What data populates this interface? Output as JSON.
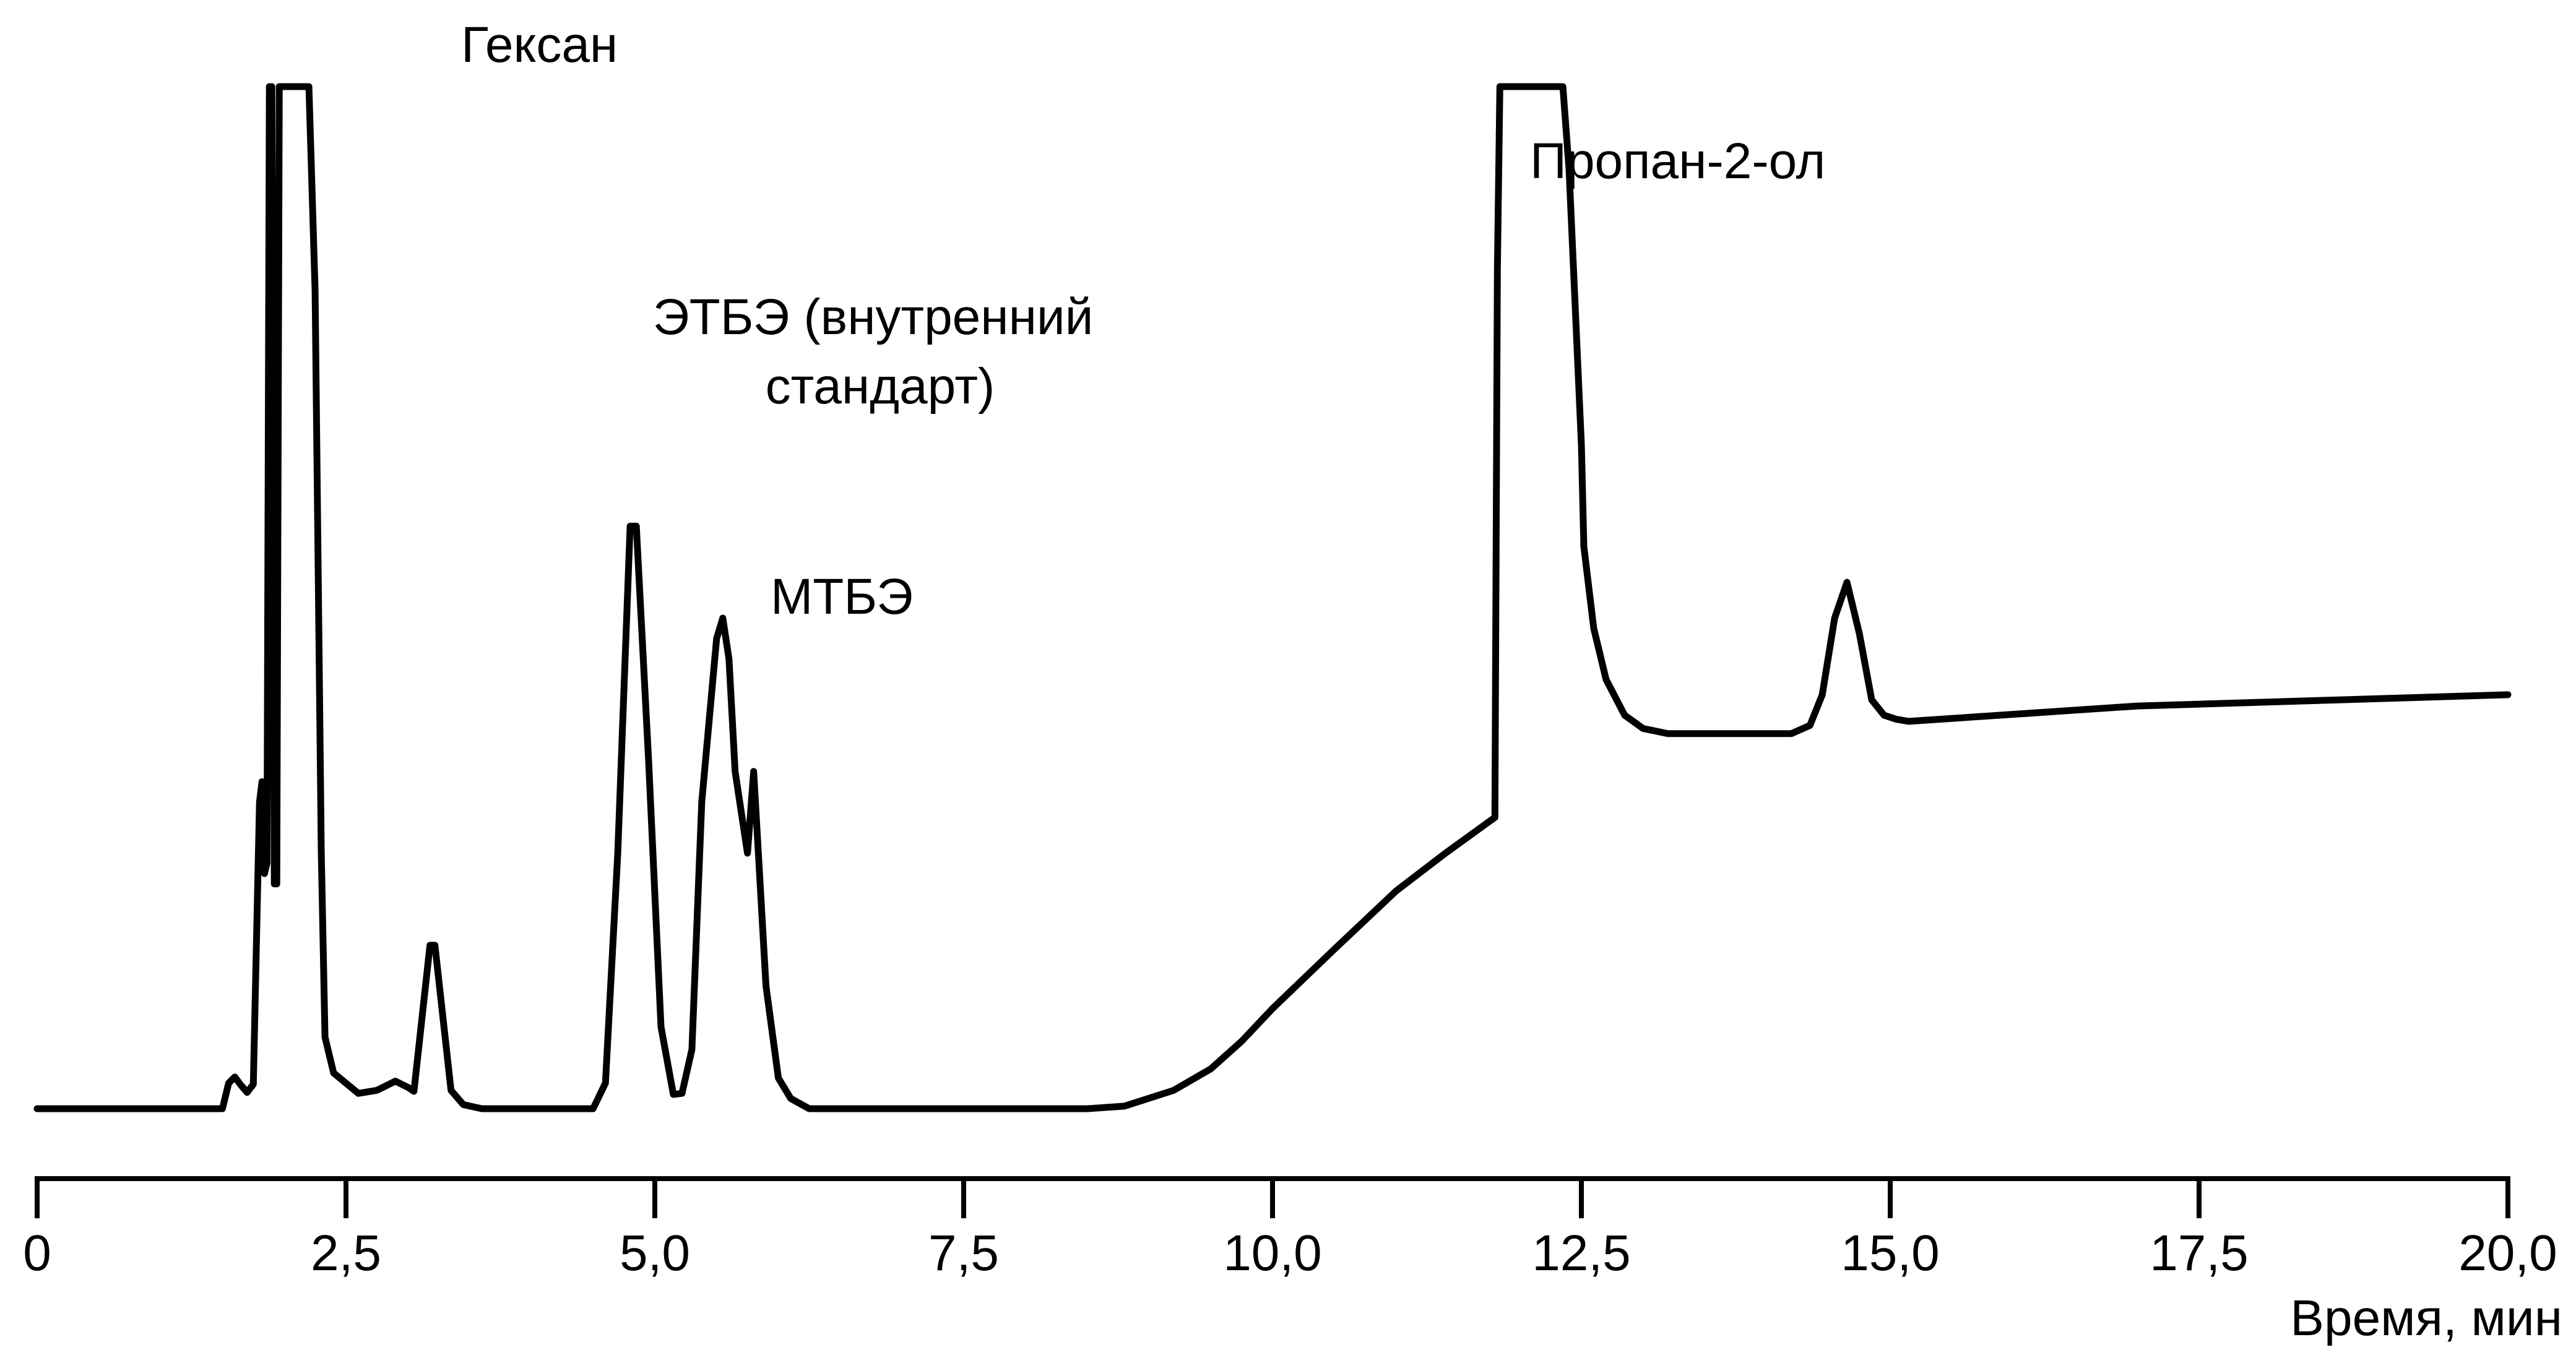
{
  "chart_data": {
    "type": "line",
    "title": "",
    "xlabel": "Время, мин",
    "ylabel": "",
    "xlim": [
      0,
      20
    ],
    "ylim": [
      0,
      100
    ],
    "grid": false,
    "legend": "none",
    "line_color": "#000000",
    "x_ticks": [
      {
        "value": 0,
        "label": "0"
      },
      {
        "value": 2.5,
        "label": "2,5"
      },
      {
        "value": 5,
        "label": "5,0"
      },
      {
        "value": 7.5,
        "label": "7,5"
      },
      {
        "value": 10,
        "label": "10,0"
      },
      {
        "value": 12.5,
        "label": "12,5"
      },
      {
        "value": 15,
        "label": "15,0"
      },
      {
        "value": 17.5,
        "label": "17,5"
      },
      {
        "value": 20,
        "label": "20,0"
      }
    ],
    "series": [
      {
        "points": [
          [
            0,
            0
          ],
          [
            1.5,
            0
          ],
          [
            1.55,
            2.5
          ],
          [
            1.6,
            3.1
          ],
          [
            1.65,
            2.3
          ],
          [
            1.7,
            1.6
          ],
          [
            1.75,
            2.4
          ],
          [
            1.8,
            30
          ],
          [
            1.82,
            32
          ],
          [
            1.84,
            23
          ],
          [
            1.86,
            24
          ],
          [
            1.88,
            100
          ],
          [
            1.9,
            100
          ],
          [
            1.92,
            22
          ],
          [
            1.94,
            22
          ],
          [
            1.96,
            100
          ],
          [
            2.2,
            100
          ],
          [
            2.25,
            80
          ],
          [
            2.3,
            25
          ],
          [
            2.33,
            7
          ],
          [
            2.4,
            3.5
          ],
          [
            2.6,
            1.5
          ],
          [
            2.75,
            1.8
          ],
          [
            2.9,
            2.7
          ],
          [
            3.0,
            2.1
          ],
          [
            3.05,
            1.7
          ],
          [
            3.18,
            16
          ],
          [
            3.22,
            16
          ],
          [
            3.35,
            1.8
          ],
          [
            3.45,
            0.4
          ],
          [
            3.6,
            0
          ],
          [
            4.5,
            0
          ],
          [
            4.6,
            2.5
          ],
          [
            4.7,
            25
          ],
          [
            4.8,
            57
          ],
          [
            4.85,
            57
          ],
          [
            4.95,
            34
          ],
          [
            5.05,
            8
          ],
          [
            5.15,
            1.4
          ],
          [
            5.22,
            1.5
          ],
          [
            5.3,
            5.8
          ],
          [
            5.38,
            30
          ],
          [
            5.5,
            46
          ],
          [
            5.55,
            48
          ],
          [
            5.6,
            44
          ],
          [
            5.65,
            33
          ],
          [
            5.75,
            25
          ],
          [
            5.8,
            33
          ],
          [
            5.9,
            12
          ],
          [
            6.0,
            3
          ],
          [
            6.1,
            1
          ],
          [
            6.25,
            0
          ],
          [
            8.5,
            0
          ],
          [
            8.8,
            0.25
          ],
          [
            9.2,
            1.8
          ],
          [
            9.5,
            3.9
          ],
          [
            9.75,
            6.6
          ],
          [
            10.0,
            9.8
          ],
          [
            10.5,
            15.6
          ],
          [
            11.0,
            21.3
          ],
          [
            11.4,
            25
          ],
          [
            11.8,
            28.5
          ],
          [
            11.82,
            82
          ],
          [
            11.84,
            100
          ],
          [
            11.85,
            100
          ],
          [
            12.35,
            100
          ],
          [
            12.4,
            92
          ],
          [
            12.5,
            65
          ],
          [
            12.52,
            55
          ],
          [
            12.6,
            47
          ],
          [
            12.7,
            42
          ],
          [
            12.85,
            38.5
          ],
          [
            13.0,
            37.2
          ],
          [
            13.2,
            36.7
          ],
          [
            14.2,
            36.7
          ],
          [
            14.35,
            37.5
          ],
          [
            14.45,
            40.5
          ],
          [
            14.55,
            48
          ],
          [
            14.65,
            51.5
          ],
          [
            14.75,
            46.5
          ],
          [
            14.85,
            40
          ],
          [
            14.95,
            38.5
          ],
          [
            15.05,
            38.1
          ],
          [
            15.15,
            37.9
          ],
          [
            17.0,
            39.4
          ],
          [
            20.0,
            40.5
          ]
        ]
      }
    ],
    "annotations": [
      {
        "text": "Гексан",
        "x": 2.75,
        "y": 100
      },
      {
        "lines": [
          "ЭТБЭ (внутренний",
          "стандарт)"
        ],
        "x": 4.85,
        "y": 57
      },
      {
        "text": "МТБЭ",
        "x": 5.75,
        "y": 48
      },
      {
        "text": "Пропан-2-ол",
        "x": 12.4,
        "y": 92
      }
    ]
  }
}
